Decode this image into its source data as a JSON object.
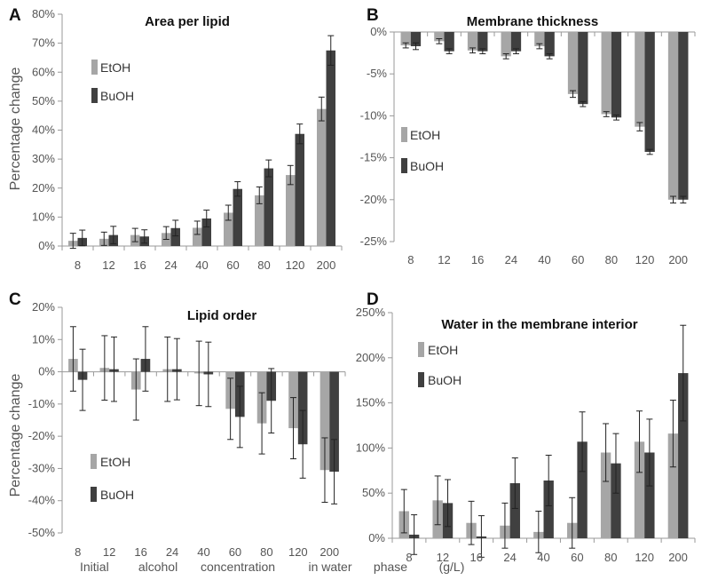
{
  "figure": {
    "xlabel_words": [
      "Initial",
      "alcohol",
      "concentration",
      "in water",
      "phase",
      "(g/L)"
    ],
    "colors": {
      "EtOH": "#a6a6a6",
      "BuOH": "#404040",
      "axis": "#999999",
      "errorbar": "#222222"
    }
  },
  "chart_data": [
    {
      "panel": "A",
      "type": "bar",
      "title": "Area per lipid",
      "ylabel": "Percentage change",
      "xlabel": "",
      "ylim": [
        0,
        80
      ],
      "yticks": [
        "0%",
        "10%",
        "20%",
        "30%",
        "40%",
        "50%",
        "60%",
        "70%",
        "80%"
      ],
      "categories": [
        "8",
        "12",
        "16",
        "24",
        "40",
        "60",
        "80",
        "120",
        "200"
      ],
      "legend_position": "upper-left",
      "series": [
        {
          "name": "EtOH",
          "values": [
            1.8,
            2.5,
            3.8,
            4.5,
            6.3,
            11.5,
            17.5,
            24.5,
            47.3
          ],
          "errors": [
            2.6,
            2.3,
            2.3,
            2.2,
            2.3,
            2.6,
            2.9,
            3.3,
            4.1
          ]
        },
        {
          "name": "BuOH",
          "values": [
            2.8,
            3.8,
            3.3,
            6.2,
            9.5,
            19.7,
            26.8,
            38.7,
            67.5
          ],
          "errors": [
            2.7,
            3.0,
            2.3,
            2.7,
            2.9,
            2.5,
            2.9,
            3.4,
            5.1
          ]
        }
      ]
    },
    {
      "panel": "B",
      "type": "bar",
      "title": "Membrane thickness",
      "ylabel": "",
      "xlabel": "",
      "ylim": [
        -25,
        0
      ],
      "yticks": [
        "-25%",
        "-20%",
        "-15%",
        "-10%",
        "-5%",
        "0%"
      ],
      "categories": [
        "8",
        "12",
        "16",
        "24",
        "40",
        "60",
        "80",
        "120",
        "200"
      ],
      "legend_position": "middle-left",
      "series": [
        {
          "name": "EtOH",
          "values": [
            -1.6,
            -1.1,
            -2.2,
            -2.9,
            -1.7,
            -7.4,
            -9.8,
            -11.3,
            -20.0
          ],
          "errors": [
            0.3,
            0.3,
            0.3,
            0.3,
            0.3,
            0.4,
            0.3,
            0.5,
            0.4
          ]
        },
        {
          "name": "BuOH",
          "values": [
            -1.7,
            -2.3,
            -2.3,
            -2.3,
            -2.9,
            -8.6,
            -10.2,
            -14.3,
            -20.0
          ],
          "errors": [
            0.4,
            0.3,
            0.3,
            0.3,
            0.3,
            0.3,
            0.3,
            0.3,
            0.4
          ]
        }
      ]
    },
    {
      "panel": "C",
      "type": "bar",
      "title": "Lipid order",
      "ylabel": "Percentage change",
      "xlabel": "",
      "ylim": [
        -50,
        20
      ],
      "yticks": [
        "-50%",
        "-40%",
        "-30%",
        "-20%",
        "-10%",
        "0%",
        "10%",
        "20%"
      ],
      "categories": [
        "8",
        "12",
        "16",
        "24",
        "40",
        "60",
        "80",
        "120",
        "200"
      ],
      "legend_position": "lower-left",
      "series": [
        {
          "name": "EtOH",
          "values": [
            4.0,
            1.2,
            -5.5,
            0.8,
            -0.5,
            -11.5,
            -16.0,
            -17.5,
            -30.5
          ],
          "errors": [
            10.0,
            10.0,
            9.5,
            10.0,
            10.0,
            9.5,
            9.5,
            9.5,
            10.0
          ]
        },
        {
          "name": "BuOH",
          "values": [
            -2.5,
            0.8,
            4.0,
            0.8,
            -0.8,
            -14.0,
            -9.0,
            -22.5,
            -31.0
          ],
          "errors": [
            9.5,
            10.0,
            10.0,
            9.5,
            10.0,
            9.5,
            10.0,
            10.5,
            10.0
          ]
        }
      ]
    },
    {
      "panel": "D",
      "type": "bar",
      "title": "Water in the membrane interior",
      "ylabel": "",
      "xlabel": "Initial alcohol concentration in water phase (g/L)",
      "ylim": [
        0,
        250
      ],
      "yticks": [
        "0%",
        "50%",
        "100%",
        "150%",
        "200%",
        "250%"
      ],
      "categories": [
        "8",
        "12",
        "16",
        "24",
        "40",
        "60",
        "80",
        "120",
        "200"
      ],
      "legend_position": "upper-left",
      "series": [
        {
          "name": "EtOH",
          "values": [
            30,
            42,
            17,
            14,
            7,
            17,
            95,
            107,
            116
          ],
          "errors": [
            24,
            27,
            24,
            25,
            23,
            28,
            32,
            34,
            37
          ]
        },
        {
          "name": "BuOH",
          "values": [
            4,
            39,
            2,
            61,
            64,
            107,
            83,
            95,
            183
          ],
          "errors": [
            22,
            26,
            23,
            28,
            28,
            33,
            33,
            37,
            53
          ]
        }
      ]
    }
  ]
}
